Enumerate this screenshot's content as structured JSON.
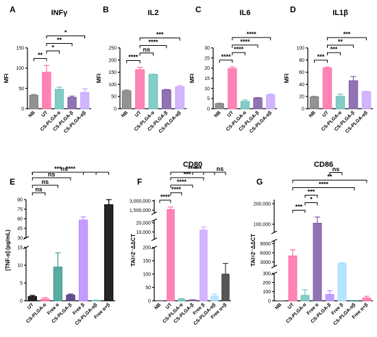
{
  "chart_data": [
    {
      "panel": "A",
      "type": "bar",
      "title": "INFγ",
      "ylabel": "MFI",
      "categories": [
        "NB",
        "UT",
        "CS-PLGA-α",
        "CS-PLGA-β",
        "CS-PLGA-αβ"
      ],
      "values": [
        33,
        90,
        48,
        28,
        40
      ],
      "errors": [
        2,
        17,
        5,
        3,
        9
      ],
      "colors": [
        "#7f7f7f",
        "#ff6fa8",
        "#6fc3be",
        "#7d5ba6",
        "#c9a8ff"
      ],
      "ylim": [
        0,
        150
      ],
      "yticks": [
        "0",
        "50",
        "100",
        "150"
      ],
      "significance": [
        {
          "from": 0,
          "to": 1,
          "label": "**"
        },
        {
          "from": 1,
          "to": 2,
          "label": "*"
        },
        {
          "from": 1,
          "to": 3,
          "label": "**"
        },
        {
          "from": 1,
          "to": 4,
          "label": "*"
        }
      ]
    },
    {
      "panel": "B",
      "type": "bar",
      "title": "IL2",
      "ylabel": "MFI",
      "categories": [
        "NB",
        "UT",
        "CS-PLGA-α",
        "CS-PLGA-β",
        "CS-PLGA-αβ"
      ],
      "values": [
        73,
        160,
        141,
        77,
        90
      ],
      "errors": [
        4,
        10,
        1,
        2,
        5
      ],
      "colors": [
        "#7f7f7f",
        "#ff6fa8",
        "#6fc3be",
        "#7d5ba6",
        "#c9a8ff"
      ],
      "ylim": [
        0,
        250
      ],
      "yticks": [
        "0",
        "50",
        "100",
        "150",
        "200",
        "250"
      ],
      "significance": [
        {
          "from": 0,
          "to": 1,
          "label": "****"
        },
        {
          "from": 1,
          "to": 2,
          "label": "ns"
        },
        {
          "from": 1,
          "to": 3,
          "label": "****"
        },
        {
          "from": 1,
          "to": 4,
          "label": "***"
        }
      ]
    },
    {
      "panel": "C",
      "type": "bar",
      "title": "IL6",
      "ylabel": "MFI",
      "categories": [
        "NB",
        "UT",
        "CS-PLGA-α",
        "CS-PLGA-β",
        "CS-PLGA-αβ"
      ],
      "values": [
        2.5,
        19.8,
        3.6,
        5.3,
        6.8
      ],
      "errors": [
        0.2,
        0.8,
        0.7,
        0.2,
        0.4
      ],
      "colors": [
        "#7f7f7f",
        "#ff6fa8",
        "#6fc3be",
        "#7d5ba6",
        "#c9a8ff"
      ],
      "ylim": [
        0,
        30
      ],
      "yticks": [
        "0",
        "5",
        "10",
        "15",
        "20",
        "25",
        "30"
      ],
      "significance": [
        {
          "from": 0,
          "to": 1,
          "label": "****"
        },
        {
          "from": 1,
          "to": 2,
          "label": "****"
        },
        {
          "from": 1,
          "to": 3,
          "label": "****"
        },
        {
          "from": 1,
          "to": 4,
          "label": "****"
        }
      ]
    },
    {
      "panel": "D",
      "type": "bar",
      "title": "IL1β",
      "ylabel": "MFI",
      "categories": [
        "NB",
        "UT",
        "CS-PLGA-α",
        "CS-PLGA-β",
        "CS-PLGA-αβ"
      ],
      "values": [
        19.5,
        67,
        20.5,
        46,
        28
      ],
      "errors": [
        0.8,
        1.5,
        3.5,
        7,
        0.5
      ],
      "colors": [
        "#7f7f7f",
        "#ff6fa8",
        "#6fc3be",
        "#7d5ba6",
        "#c9a8ff"
      ],
      "ylim": [
        0,
        100
      ],
      "yticks": [
        "0",
        "20",
        "40",
        "60",
        "80",
        "100"
      ],
      "significance": [
        {
          "from": 0,
          "to": 1,
          "label": "***"
        },
        {
          "from": 1,
          "to": 2,
          "label": "***"
        },
        {
          "from": 1,
          "to": 3,
          "label": "**"
        },
        {
          "from": 1,
          "to": 4,
          "label": "***"
        }
      ]
    },
    {
      "panel": "E",
      "type": "bar",
      "title": "",
      "ylabel": "[TNF-α] (pg/mL)",
      "categories": [
        "UT",
        "CS-PLGA-α",
        "Free α",
        "CS-PLGA-β",
        "Free β",
        "CS-PLGA-αβ",
        "Free α+β"
      ],
      "values": [
        1.2,
        0.5,
        9.5,
        1.6,
        58,
        0.1,
        82
      ],
      "errors": [
        0.3,
        0.4,
        4,
        0.3,
        5,
        0.1,
        10
      ],
      "colors": [
        "#000000",
        "#ff6fa8",
        "#3e9c8f",
        "#4a2f7a",
        "#b78bff",
        "#6fc3be",
        "#000000"
      ],
      "yticks": [
        "0",
        "5",
        "10",
        "15",
        "30",
        "45",
        "60",
        "75",
        "90"
      ],
      "axis_break": [
        15,
        30
      ],
      "significance": [
        {
          "from": 0,
          "to": 1,
          "label": "ns"
        },
        {
          "from": 0,
          "to": 2,
          "label": "ns"
        },
        {
          "from": 0,
          "to": 3,
          "label": "ns"
        },
        {
          "from": 0,
          "to": 4,
          "label": "***"
        },
        {
          "from": 0,
          "to": 5,
          "label": "ns"
        },
        {
          "from": 0,
          "to": 6,
          "label": "****"
        }
      ]
    },
    {
      "panel": "F",
      "type": "bar",
      "title": "CD80",
      "ylabel": "TAI=2⁻ΔΔCT",
      "categories": [
        "NB",
        "UT",
        "CS-PLGA-α",
        "CS-PLGA-β",
        "Free β",
        "CS-PLGA-αβ",
        "Free α+β"
      ],
      "values": [
        1,
        1600000,
        5,
        3,
        12000,
        18,
        100
      ],
      "errors": [
        0,
        400000,
        3,
        1,
        3500,
        8,
        40
      ],
      "colors": [
        "#7f7f7f",
        "#ff6fa8",
        "#6fc3be",
        "#7d5ba6",
        "#c9a8ff",
        "#a6e0ff",
        "#3a3a3a"
      ],
      "yticks": [
        "0",
        "50",
        "100",
        "150",
        "200",
        "10,000",
        "20,000",
        "1,500,000",
        "3,000,000"
      ],
      "significance": [
        {
          "from": 0,
          "to": 1,
          "label": "****"
        },
        {
          "from": 1,
          "to": 2,
          "label": "****"
        },
        {
          "from": 1,
          "to": 3,
          "label": "****"
        },
        {
          "from": 1,
          "to": 4,
          "label": "***"
        },
        {
          "from": 1,
          "to": 5,
          "label": "****"
        },
        {
          "from": 3,
          "to": 4,
          "label": "***"
        },
        {
          "from": 5,
          "to": 6,
          "label": "ns"
        }
      ]
    },
    {
      "panel": "G",
      "type": "bar",
      "title": "CD86",
      "ylabel": "TAI=2⁻ΔΔCT",
      "categories": [
        "NB",
        "UT",
        "CS-PLGA-α",
        "Free α",
        "CS-PLGA-β",
        "Free β",
        "CS-PLGA-αβ",
        "Free α+β"
      ],
      "values": [
        1,
        5000,
        60,
        105000,
        70,
        2500,
        2,
        30
      ],
      "errors": [
        0,
        2000,
        60,
        30000,
        40,
        300,
        1,
        20
      ],
      "colors": [
        "#7f7f7f",
        "#ff6fa8",
        "#6fc3be",
        "#7d5ba6",
        "#b78bff",
        "#a6e0ff",
        "#3e9c8f",
        "#ff6fa8"
      ],
      "yticks": [
        "0",
        "100",
        "200",
        "300",
        "3000",
        "6000",
        "9000",
        "100,000",
        "200,000"
      ],
      "significance": [
        {
          "from": 1,
          "to": 2,
          "label": "***"
        },
        {
          "from": 2,
          "to": 3,
          "label": "*"
        },
        {
          "from": 2,
          "to": 3,
          "label": "***"
        },
        {
          "from": 1,
          "to": 6,
          "label": "****"
        },
        {
          "from": 1,
          "to": 7,
          "label": "**"
        },
        {
          "from": 4,
          "to": 5,
          "label": "ns"
        }
      ]
    }
  ]
}
